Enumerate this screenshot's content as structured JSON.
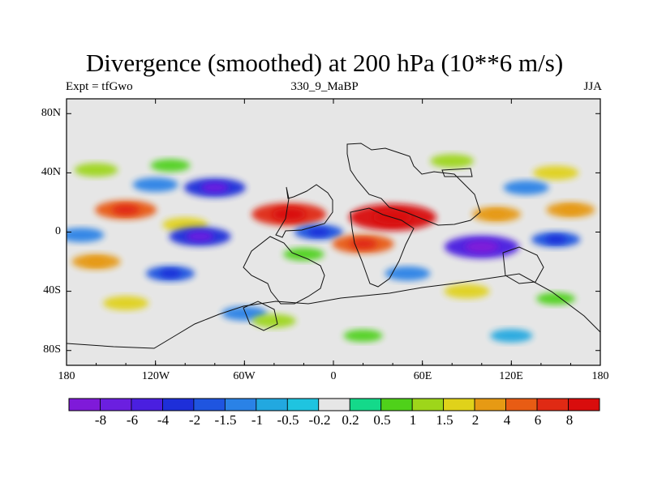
{
  "header": {
    "title": "Divergence (smoothed) at 200 hPa (10**6 m/s)",
    "left_label": "Expt = tfGwo",
    "center_label": "330_9_MaBP",
    "right_label": "JJA"
  },
  "chart_data": {
    "type": "heatmap",
    "title": "Divergence (smoothed) at 200 hPa (10**6 m/s)",
    "variable": "Divergence (smoothed)",
    "level": "200 hPa",
    "units": "10**6 m/s",
    "season": "JJA",
    "x_ticks": [
      {
        "value": -180,
        "label": "180"
      },
      {
        "value": -120,
        "label": "120W"
      },
      {
        "value": -60,
        "label": "60W"
      },
      {
        "value": 0,
        "label": "0"
      },
      {
        "value": 60,
        "label": "60E"
      },
      {
        "value": 120,
        "label": "120E"
      },
      {
        "value": 180,
        "label": "180"
      }
    ],
    "y_ticks": [
      {
        "value": 80,
        "label": "80N"
      },
      {
        "value": 40,
        "label": "40N"
      },
      {
        "value": 0,
        "label": "0"
      },
      {
        "value": -40,
        "label": "40S"
      },
      {
        "value": -80,
        "label": "80S"
      }
    ],
    "xlim": [
      -180,
      180
    ],
    "ylim": [
      -90,
      90
    ],
    "levels": [
      -8,
      -6,
      -4,
      -2,
      -1.5,
      -1,
      -0.5,
      -0.2,
      0.2,
      0.5,
      1,
      1.5,
      2,
      4,
      6,
      8
    ],
    "level_labels": [
      "-8",
      "-6",
      "-4",
      "-2",
      "-1.5",
      "-1",
      "-0.5",
      "-0.2",
      "0.2",
      "0.5",
      "1",
      "1.5",
      "2",
      "4",
      "6",
      "8"
    ],
    "colors": [
      "#7f1ad9",
      "#6b1fe0",
      "#4a1fe0",
      "#1e2fd9",
      "#1f55e0",
      "#2a82e6",
      "#22a8e0",
      "#1fc4e0",
      "#e6e6e6",
      "#14d98a",
      "#4fd11a",
      "#9ed61a",
      "#e0d21a",
      "#e69a14",
      "#e85c14",
      "#e02a14",
      "#d90d0d"
    ],
    "features": [
      {
        "lon": -110,
        "lat": 45,
        "value": 0.6
      },
      {
        "lon": -160,
        "lat": 42,
        "value": 1.2
      },
      {
        "lon": 150,
        "lat": 40,
        "value": 1.5
      },
      {
        "lon": 80,
        "lat": 48,
        "value": 1.2
      },
      {
        "lon": -80,
        "lat": 30,
        "value": -4
      },
      {
        "lon": -120,
        "lat": 32,
        "value": -1.5
      },
      {
        "lon": 130,
        "lat": 30,
        "value": -1.5
      },
      {
        "lon": -140,
        "lat": 15,
        "value": 4
      },
      {
        "lon": -30,
        "lat": 12,
        "value": 6
      },
      {
        "lon": 40,
        "lat": 10,
        "value": 8
      },
      {
        "lon": 110,
        "lat": 12,
        "value": 2
      },
      {
        "lon": 160,
        "lat": 15,
        "value": 2
      },
      {
        "lon": -100,
        "lat": 5,
        "value": 1.5
      },
      {
        "lon": -170,
        "lat": -2,
        "value": -1.5
      },
      {
        "lon": -90,
        "lat": -3,
        "value": -4
      },
      {
        "lon": -10,
        "lat": 0,
        "value": -2
      },
      {
        "lon": 100,
        "lat": -10,
        "value": -6
      },
      {
        "lon": 150,
        "lat": -5,
        "value": -2
      },
      {
        "lon": -160,
        "lat": -20,
        "value": 2
      },
      {
        "lon": -20,
        "lat": -15,
        "value": 0.8
      },
      {
        "lon": 20,
        "lat": -8,
        "value": 4
      },
      {
        "lon": -110,
        "lat": -28,
        "value": -2
      },
      {
        "lon": 50,
        "lat": -28,
        "value": -1.5
      },
      {
        "lon": -140,
        "lat": -48,
        "value": 1.5
      },
      {
        "lon": 90,
        "lat": -40,
        "value": 1.5
      },
      {
        "lon": 150,
        "lat": -45,
        "value": 0.5
      },
      {
        "lon": -60,
        "lat": -55,
        "value": -1.5
      },
      {
        "lon": -40,
        "lat": -60,
        "value": 1.2
      },
      {
        "lon": 20,
        "lat": -70,
        "value": 0.5
      },
      {
        "lon": 120,
        "lat": -70,
        "value": -1
      }
    ]
  }
}
